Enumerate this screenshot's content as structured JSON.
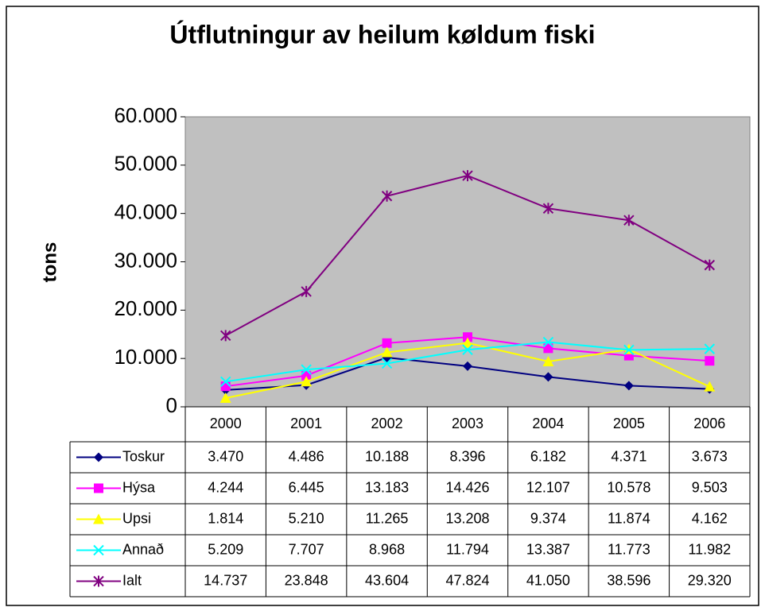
{
  "chart_data": {
    "type": "line",
    "title": "Útflutningur av heilum køldum fiski",
    "y_label": "tons",
    "categories": [
      "2000",
      "2001",
      "2002",
      "2003",
      "2004",
      "2005",
      "2006"
    ],
    "series": [
      {
        "name": "Toskur",
        "color": "#000080",
        "marker": "diamond",
        "values": [
          3470,
          4486,
          10188,
          8396,
          6182,
          4371,
          3673
        ],
        "value_labels": [
          "3.470",
          "4.486",
          "10.188",
          "8.396",
          "6.182",
          "4.371",
          "3.673"
        ]
      },
      {
        "name": "Hýsa",
        "color": "#ff00ff",
        "marker": "square",
        "values": [
          4244,
          6445,
          13183,
          14426,
          12107,
          10578,
          9503
        ],
        "value_labels": [
          "4.244",
          "6.445",
          "13.183",
          "14.426",
          "12.107",
          "10.578",
          "9.503"
        ]
      },
      {
        "name": "Upsi",
        "color": "#ffff00",
        "marker": "triangle",
        "values": [
          1814,
          5210,
          11265,
          13208,
          9374,
          11874,
          4162
        ],
        "value_labels": [
          "1.814",
          "5.210",
          "11.265",
          "13.208",
          "9.374",
          "11.874",
          "4.162"
        ]
      },
      {
        "name": "Annað",
        "color": "#00ffff",
        "marker": "x",
        "values": [
          5209,
          7707,
          8968,
          11794,
          13387,
          11773,
          11982
        ],
        "value_labels": [
          "5.209",
          "7.707",
          "8.968",
          "11.794",
          "13.387",
          "11.773",
          "11.982"
        ]
      },
      {
        "name": "Ialt",
        "color": "#800080",
        "marker": "star",
        "values": [
          14737,
          23848,
          43604,
          47824,
          41050,
          38596,
          29320
        ],
        "value_labels": [
          "14.737",
          "23.848",
          "43.604",
          "47.824",
          "41.050",
          "38.596",
          "29.320"
        ]
      }
    ],
    "ylim": [
      0,
      60000
    ],
    "yticks": [
      0,
      {
        "value": 10000,
        "label": "10.000"
      },
      {
        "value": 20000,
        "label": "20.000"
      },
      {
        "value": 30000,
        "label": "30.000"
      },
      {
        "value": 40000,
        "label": "40.000"
      },
      {
        "value": 50000,
        "label": "50.000"
      },
      {
        "value": 60000,
        "label": "60.000"
      }
    ],
    "plot_background": "#c0c0c0",
    "data_table": true
  }
}
